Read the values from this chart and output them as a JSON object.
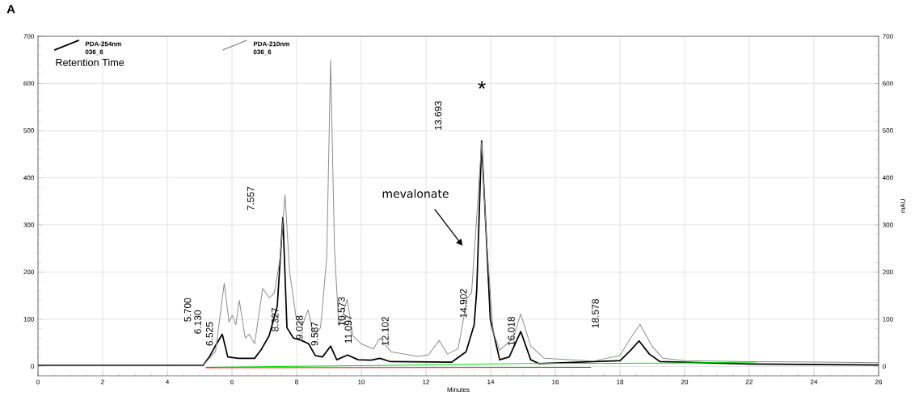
{
  "chart_data": {
    "type": "line",
    "xlabel": "Minutes",
    "y2label": "mAU",
    "legend_title": "Retention Time",
    "xlim": [
      0,
      26
    ],
    "xticks": [
      0,
      2,
      4,
      6,
      8,
      10,
      12,
      14,
      16,
      18,
      20,
      22,
      24,
      26
    ],
    "ylim": [
      -20,
      700
    ],
    "yticks": [
      0,
      100,
      200,
      300,
      400,
      500,
      600,
      700
    ],
    "y2lim": [
      -20,
      700
    ],
    "y2ticks": [
      0,
      100,
      200,
      300,
      400,
      500,
      600,
      700
    ],
    "grid": true,
    "legend": "top left",
    "marker": "none",
    "line_style": "solid",
    "series": [
      {
        "name": "PDA-254nm 036_6",
        "color": "#000000",
        "x": [
          0,
          5.1,
          5.3,
          5.5,
          5.7,
          5.87,
          6.2,
          6.7,
          6.9,
          7.15,
          7.4,
          7.575,
          7.7,
          7.9,
          8.15,
          8.37,
          8.575,
          8.8,
          9.05,
          9.24,
          9.575,
          9.9,
          10.3,
          10.575,
          10.9,
          12.8,
          13.24,
          13.49,
          13.57,
          13.72,
          13.87,
          13.99,
          14.28,
          14.575,
          14.93,
          15.24,
          15.49,
          18.0,
          18.33,
          18.59,
          18.91,
          19.24,
          22,
          26
        ],
        "values": [
          2,
          2,
          20,
          45,
          68,
          20,
          17,
          17,
          35,
          65,
          128,
          316,
          82,
          60,
          55,
          48,
          23,
          20,
          43,
          14,
          24,
          14,
          13,
          17,
          10,
          9,
          31,
          88,
          162,
          478,
          270,
          100,
          14,
          20,
          74,
          14,
          6,
          12,
          34,
          54,
          26,
          10,
          5,
          3
        ]
      },
      {
        "name": "PDA-210nm 036_6",
        "color": "#8c8c8c",
        "x": [
          0,
          5.1,
          5.49,
          5.76,
          5.91,
          6.01,
          6.12,
          6.225,
          6.41,
          6.53,
          6.7,
          6.95,
          7.16,
          7.31,
          7.49,
          7.64,
          7.78,
          7.99,
          8.2,
          8.35,
          8.53,
          8.74,
          8.93,
          9.05,
          9.17,
          9.3,
          9.43,
          9.56,
          9.74,
          9.99,
          10.37,
          10.575,
          10.91,
          11.74,
          12.07,
          12.41,
          12.66,
          12.99,
          13.28,
          13.41,
          13.58,
          13.72,
          13.87,
          14.08,
          14.28,
          14.7,
          14.93,
          15.24,
          15.66,
          17.16,
          18.0,
          18.33,
          18.62,
          18.99,
          19.33,
          20,
          22,
          26
        ],
        "values": [
          2,
          2,
          31,
          176,
          94,
          108,
          88,
          140,
          60,
          68,
          48,
          165,
          145,
          156,
          230,
          364,
          202,
          100,
          91,
          120,
          65,
          82,
          230,
          650,
          250,
          88,
          110,
          142,
          65,
          48,
          37,
          60,
          31,
          21,
          24,
          55,
          26,
          37,
          145,
          156,
          328,
          475,
          270,
          72,
          34,
          60,
          111,
          43,
          17,
          11,
          23,
          60,
          89,
          43,
          17,
          12,
          10,
          8
        ]
      },
      {
        "color": "#00e000",
        "x": [
          5.2,
          8,
          12,
          15,
          19.5,
          22.2
        ],
        "values": [
          -2,
          0,
          3,
          6,
          7,
          9
        ]
      },
      {
        "color": "#ff0000",
        "x": [
          5.2,
          17.1
        ],
        "values": [
          -3,
          -2
        ]
      }
    ],
    "annotations": [
      "5.700",
      "6.130",
      "6.525",
      "7.557",
      "8.327",
      "9.028",
      "9.587",
      "10.573",
      "11.097",
      "12.102",
      "13.693",
      "14.902",
      "16.018",
      "18.578",
      "*",
      "mevalonate",
      "A"
    ]
  }
}
